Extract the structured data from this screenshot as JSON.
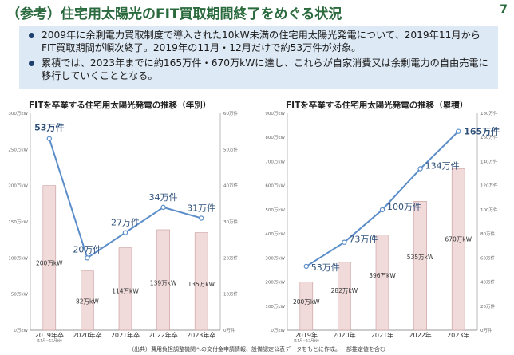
{
  "header": {
    "title": "（参考）住宅用太陽光のFIT買取期間終了をめぐる状況",
    "page_number": "7"
  },
  "summary": {
    "bullets": [
      "2009年に余剰電力買取制度で導入された10kW未満の住宅用太陽光発電について、2019年11月からFIT買取期間が順次終了。2019年の11月・12月だけで約53万件が対象。",
      "累積では、2023年までに約165万件・670万kWに達し、これらが自家消費又は余剰電力の自由売電に移行していくこととなる。"
    ]
  },
  "source_note": "（出典）費用負担調整機関への交付金申請情報、設備認定公表データをもとに作成。一部推定値を含む",
  "chart_data": [
    {
      "type": "bar+line",
      "title": "FITを卒業する住宅用太陽光発電の推移（年別）",
      "categories": [
        "2019年卒",
        "2020年卒",
        "2021年卒",
        "2022年卒",
        "2023年卒"
      ],
      "category_note": "（11月~12月分）",
      "left_axis": {
        "ticks": [
          "0万kW",
          "50万kW",
          "100万kW",
          "150万kW",
          "200万kW",
          "250万kW",
          "300万kW"
        ],
        "ylim": [
          0,
          300
        ]
      },
      "right_axis": {
        "ticks": [
          "0万件",
          "10万件",
          "20万件",
          "30万件",
          "40万件",
          "50万件",
          "60万件"
        ],
        "ylim": [
          0,
          60
        ]
      },
      "bars": {
        "values": [
          200,
          82,
          114,
          139,
          135
        ],
        "labels": [
          "200万kW",
          "82万kW",
          "114万kW",
          "139万kW",
          "135万kW"
        ],
        "color": "#f0dada",
        "border": "#c99a9a"
      },
      "line": {
        "values": [
          53,
          20,
          27,
          34,
          31
        ],
        "labels": [
          "53万件",
          "20万件",
          "27万件",
          "34万件",
          "31万件"
        ],
        "color": "#5b8dc9"
      }
    },
    {
      "type": "bar+line",
      "title": "FITを卒業する住宅用太陽光発電の推移（累積）",
      "categories": [
        "2019年",
        "2020年",
        "2021年",
        "2022年",
        "2023年"
      ],
      "category_note": "（11月~12月分）",
      "left_axis": {
        "ticks": [
          "0万kW",
          "100万kW",
          "200万kW",
          "300万kW",
          "400万kW",
          "500万kW",
          "600万kW",
          "700万kW",
          "800万kW",
          "900万kW"
        ],
        "ylim": [
          0,
          900
        ]
      },
      "right_axis": {
        "ticks": [
          "0万件",
          "20万件",
          "40万件",
          "60万件",
          "80万件",
          "100万件",
          "120万件",
          "140万件",
          "160万件",
          "180万件"
        ],
        "ylim": [
          0,
          180
        ]
      },
      "bars": {
        "values": [
          200,
          282,
          396,
          535,
          670
        ],
        "labels": [
          "200万kW",
          "282万kW",
          "396万kW",
          "535万kW",
          "670万kW"
        ],
        "color": "#f0dada",
        "border": "#c99a9a"
      },
      "line": {
        "values": [
          53,
          73,
          100,
          134,
          165
        ],
        "labels": [
          "53万件",
          "73万件",
          "100万件",
          "134万件",
          "165万件"
        ],
        "color": "#5b8dc9"
      }
    }
  ]
}
